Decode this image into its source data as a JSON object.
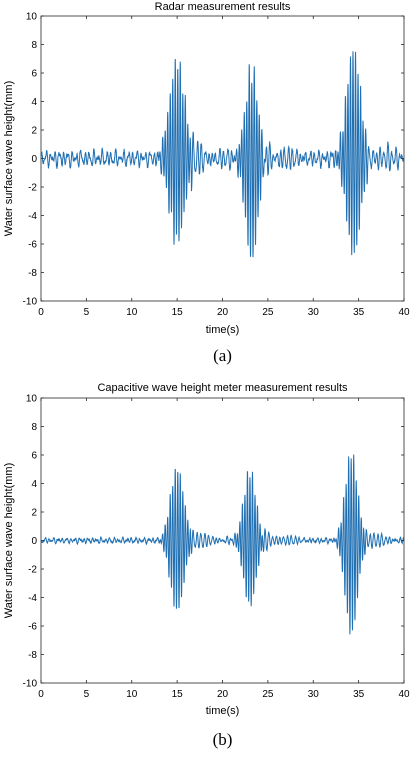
{
  "chart_data": [
    {
      "type": "line",
      "title": "Radar measurement results",
      "xlabel": "time(s)",
      "ylabel": "Water surface wave height(mm)",
      "xlim": [
        0,
        40
      ],
      "ylim": [
        -10,
        10
      ],
      "xticks": [
        0,
        5,
        10,
        15,
        20,
        25,
        30,
        35,
        40
      ],
      "yticks": [
        -10,
        -8,
        -6,
        -4,
        -2,
        0,
        2,
        4,
        6,
        8,
        10
      ],
      "grid": false,
      "caption": "(a)",
      "series_color": "#1f6fb2",
      "baseline_amplitude_mm": 0.6,
      "series": [
        {
          "packets": [
            {
              "center_s": 15.0,
              "duration_s": 2.6,
              "peak_mm": 7.5,
              "trough_mm": -6.4
            },
            {
              "center_s": 23.2,
              "duration_s": 2.2,
              "peak_mm": 6.9,
              "trough_mm": -7.7
            },
            {
              "center_s": 34.4,
              "duration_s": 2.5,
              "peak_mm": 8.2,
              "trough_mm": -7.0
            }
          ]
        }
      ]
    },
    {
      "type": "line",
      "title": "Capacitive wave height meter measurement results",
      "xlabel": "time(s)",
      "ylabel": "Water surface wave height(mm)",
      "xlim": [
        0,
        40
      ],
      "ylim": [
        -10,
        10
      ],
      "xticks": [
        0,
        5,
        10,
        15,
        20,
        25,
        30,
        35,
        40
      ],
      "yticks": [
        -10,
        -8,
        -6,
        -4,
        -2,
        0,
        2,
        4,
        6,
        8,
        10
      ],
      "grid": false,
      "caption": "(b)",
      "series_color": "#1f6fb2",
      "baseline_amplitude_mm": 0.2,
      "series": [
        {
          "packets": [
            {
              "center_s": 15.0,
              "duration_s": 2.4,
              "peak_mm": 5.3,
              "trough_mm": -5.2
            },
            {
              "center_s": 23.0,
              "duration_s": 2.2,
              "peak_mm": 5.2,
              "trough_mm": -4.8
            },
            {
              "center_s": 34.2,
              "duration_s": 2.2,
              "peak_mm": 6.5,
              "trough_mm": -6.8
            }
          ]
        }
      ]
    }
  ]
}
